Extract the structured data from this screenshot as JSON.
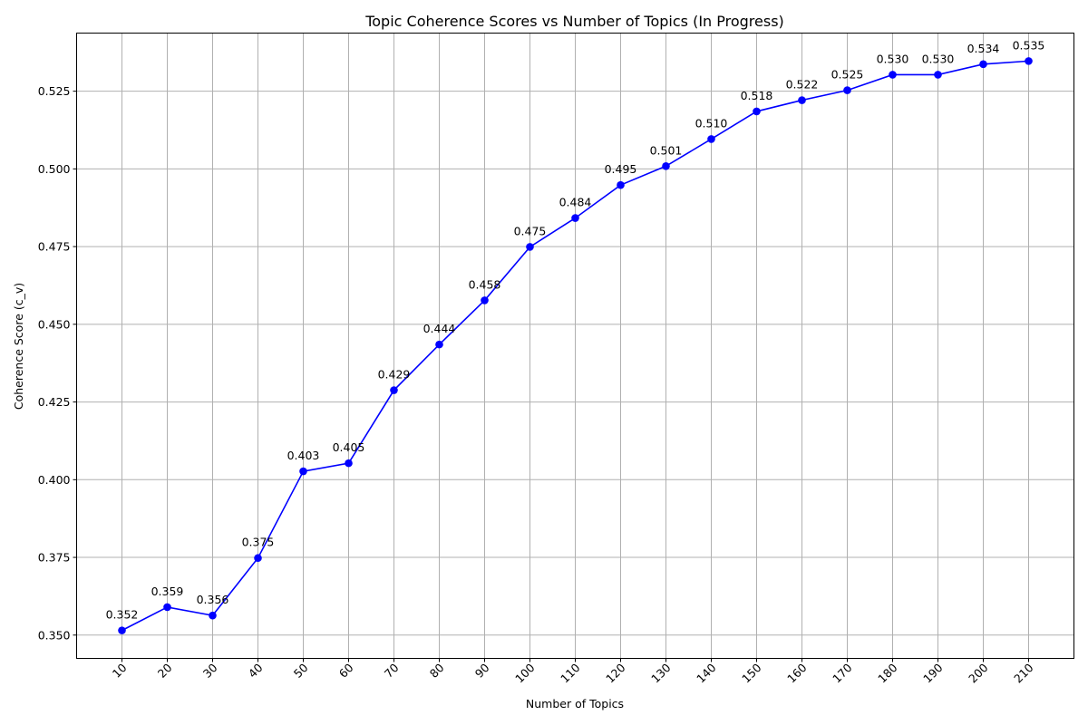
{
  "chart_data": {
    "type": "line",
    "title": "Topic Coherence Scores vs Number of Topics (In Progress)",
    "xlabel": "Number of Topics",
    "ylabel": "Coherence Score (c_v)",
    "x": [
      10,
      20,
      30,
      40,
      50,
      60,
      70,
      80,
      90,
      100,
      110,
      120,
      130,
      140,
      150,
      160,
      170,
      180,
      190,
      200,
      210
    ],
    "series": [
      {
        "values": [
          0.3515,
          0.359,
          0.3563,
          0.3748,
          0.4027,
          0.4053,
          0.4288,
          0.4435,
          0.4577,
          0.4749,
          0.4842,
          0.4948,
          0.5009,
          0.5096,
          0.5185,
          0.5221,
          0.5253,
          0.5303,
          0.5303,
          0.5337,
          0.5347
        ],
        "labels": [
          "0.352",
          "0.359",
          "0.356",
          "0.375",
          "0.403",
          "0.405",
          "0.429",
          "0.444",
          "0.458",
          "0.475",
          "0.484",
          "0.495",
          "0.501",
          "0.510",
          "0.518",
          "0.522",
          "0.525",
          "0.530",
          "0.530",
          "0.534",
          "0.535"
        ],
        "color": "#0000ff"
      }
    ],
    "xticks": [
      "10",
      "20",
      "30",
      "40",
      "50",
      "60",
      "70",
      "80",
      "90",
      "100",
      "110",
      "120",
      "130",
      "140",
      "150",
      "160",
      "170",
      "180",
      "190",
      "200",
      "210"
    ],
    "yticks": [
      0.35,
      0.375,
      0.4,
      0.425,
      0.45,
      0.475,
      0.5,
      0.525
    ],
    "ytick_labels": [
      "0.350",
      "0.375",
      "0.400",
      "0.425",
      "0.450",
      "0.475",
      "0.500",
      "0.525"
    ],
    "xlim": [
      0,
      220
    ],
    "ylim": [
      0.3425,
      0.5437
    ],
    "grid": true,
    "xtick_rotation": 45
  }
}
